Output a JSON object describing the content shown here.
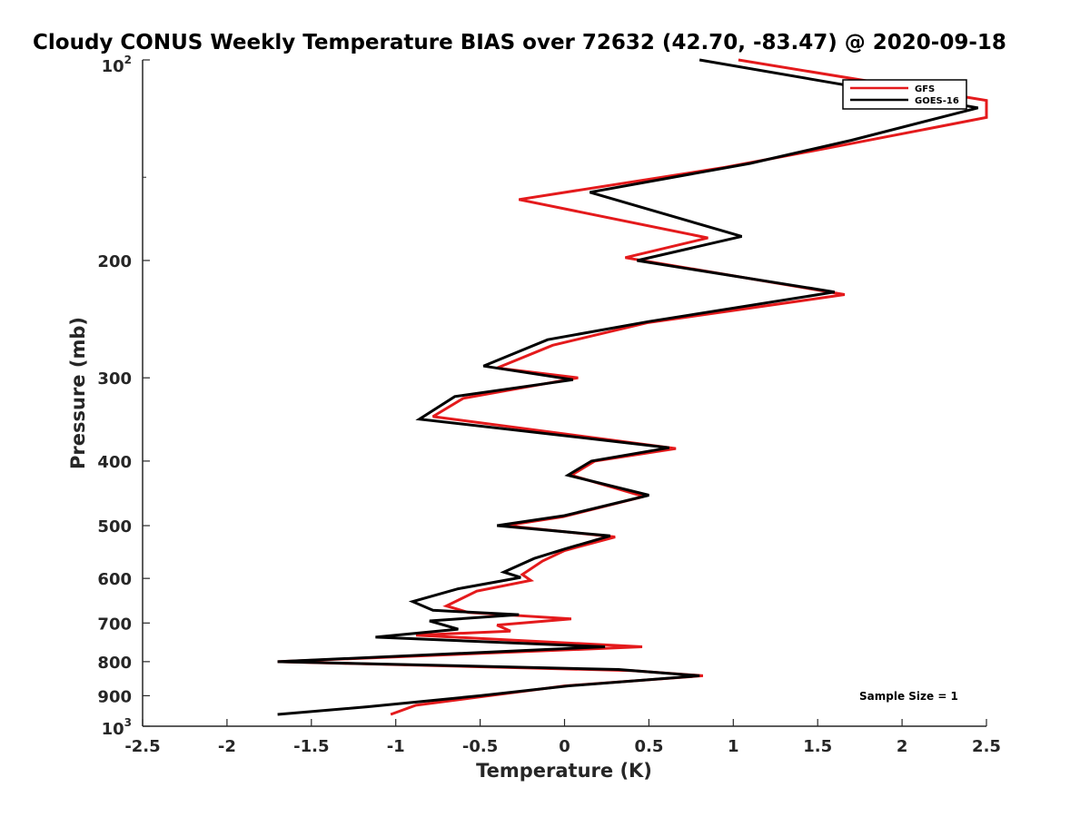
{
  "chart_data": {
    "type": "line",
    "title": "Cloudy CONUS Weekly Temperature BIAS over 72632 (42.70, -83.47) @ 2020-09-18",
    "xlabel": "Temperature (K)",
    "ylabel": "Pressure (mb)",
    "xlim": [
      -2.5,
      2.5
    ],
    "ylim": [
      100,
      1000
    ],
    "y_scale": "log",
    "y_reversed": true,
    "x_ticks": [
      -2.5,
      -2,
      -1.5,
      -1,
      -0.5,
      0,
      0.5,
      1,
      1.5,
      2,
      2.5
    ],
    "x_tick_labels": [
      "-2.5",
      "-2",
      "-1.5",
      "-1",
      "-0.5",
      "0",
      "0.5",
      "1",
      "1.5",
      "2",
      "2.5"
    ],
    "y_ticks": [
      200,
      300,
      400,
      500,
      600,
      700,
      800,
      900
    ],
    "y_tick_labels": [
      "200",
      "300",
      "400",
      "500",
      "600",
      "700",
      "800",
      "900"
    ],
    "y_tick_top": {
      "base": "10",
      "exp": "2"
    },
    "y_tick_bottom": {
      "base": "10",
      "exp": "3"
    },
    "legend_position": "top-right",
    "grid": false,
    "annotation": "Sample Size = 1",
    "series": [
      {
        "name": "GFS",
        "color": "#e41a1c",
        "points": [
          [
            1.03,
            100
          ],
          [
            2.5,
            115
          ],
          [
            2.5,
            122
          ],
          [
            1.6,
            135
          ],
          [
            0.95,
            145
          ],
          [
            -0.27,
            162
          ],
          [
            0.85,
            185
          ],
          [
            0.36,
            198
          ],
          [
            1.66,
            225
          ],
          [
            0.49,
            248
          ],
          [
            -0.07,
            268
          ],
          [
            -0.4,
            290
          ],
          [
            0.08,
            300
          ],
          [
            -0.6,
            322
          ],
          [
            -0.78,
            343
          ],
          [
            0.66,
            383
          ],
          [
            0.18,
            400
          ],
          [
            0.04,
            420
          ],
          [
            0.47,
            452
          ],
          [
            -0.01,
            485
          ],
          [
            -0.35,
            500
          ],
          [
            0.3,
            520
          ],
          [
            0.0,
            545
          ],
          [
            -0.13,
            565
          ],
          [
            -0.25,
            592
          ],
          [
            -0.2,
            604
          ],
          [
            -0.52,
            627
          ],
          [
            -0.7,
            660
          ],
          [
            -0.57,
            675
          ],
          [
            0.04,
            690
          ],
          [
            -0.4,
            705
          ],
          [
            -0.32,
            720
          ],
          [
            -0.88,
            730
          ],
          [
            0.46,
            760
          ],
          [
            -1.7,
            800
          ],
          [
            0.4,
            825
          ],
          [
            0.82,
            840
          ],
          [
            0.0,
            870
          ],
          [
            -0.52,
            905
          ],
          [
            -0.88,
            930
          ],
          [
            -1.03,
            960
          ]
        ]
      },
      {
        "name": "GOES-16",
        "color": "#000000",
        "points": [
          [
            0.8,
            100
          ],
          [
            2.45,
            118
          ],
          [
            1.7,
            132
          ],
          [
            1.1,
            143
          ],
          [
            0.15,
            158
          ],
          [
            1.05,
            184
          ],
          [
            0.43,
            200
          ],
          [
            1.6,
            223
          ],
          [
            0.5,
            247
          ],
          [
            -0.1,
            263
          ],
          [
            -0.48,
            288
          ],
          [
            0.05,
            302
          ],
          [
            -0.65,
            320
          ],
          [
            -0.86,
            346
          ],
          [
            0.62,
            382
          ],
          [
            0.16,
            400
          ],
          [
            0.02,
            420
          ],
          [
            0.5,
            450
          ],
          [
            0.0,
            483
          ],
          [
            -0.4,
            500
          ],
          [
            0.27,
            518
          ],
          [
            0.0,
            542
          ],
          [
            -0.18,
            560
          ],
          [
            -0.36,
            587
          ],
          [
            -0.26,
            598
          ],
          [
            -0.63,
            622
          ],
          [
            -0.9,
            650
          ],
          [
            -0.78,
            670
          ],
          [
            -0.27,
            680
          ],
          [
            -0.8,
            695
          ],
          [
            -0.63,
            715
          ],
          [
            -1.12,
            735
          ],
          [
            0.24,
            760
          ],
          [
            -1.7,
            800
          ],
          [
            0.32,
            822
          ],
          [
            0.8,
            840
          ],
          [
            0.02,
            870
          ],
          [
            -0.5,
            900
          ],
          [
            -1.17,
            935
          ],
          [
            -1.7,
            960
          ]
        ]
      }
    ]
  }
}
